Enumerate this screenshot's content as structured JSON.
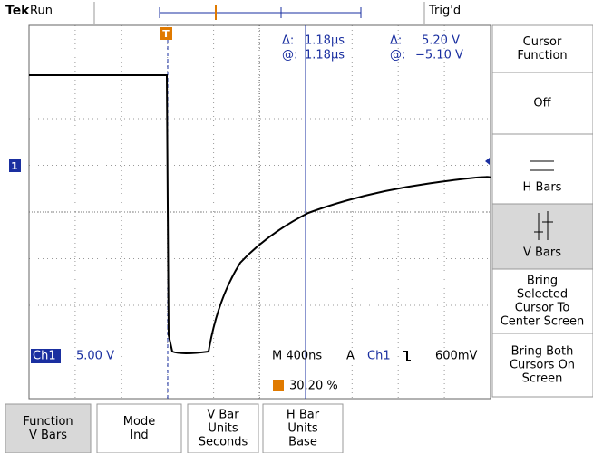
{
  "status_bar": {
    "brand": "Tek",
    "state": "Run",
    "trigger_status": "Trig'd"
  },
  "readout": {
    "time_delta_label": "Δ:",
    "time_delta": "1.18µs",
    "time_at_label": "@:",
    "time_at": "1.18µs",
    "volt_delta_label": "Δ:",
    "volt_delta": "5.20 V",
    "volt_at_label": "@:",
    "volt_at": "−5.10 V"
  },
  "channel": {
    "name": "Ch1",
    "scale": "5.00 V"
  },
  "timebase": {
    "scale": "M 400ns",
    "trigger_mode": "A",
    "trigger_source": "Ch1",
    "trigger_level": "600mV",
    "trigger_position": "30.20 %"
  },
  "markers": {
    "trigger": "T",
    "channel": "1"
  },
  "side_menu": {
    "title": [
      "Cursor",
      "Function"
    ],
    "items": [
      [
        "Off"
      ],
      [
        "H Bars"
      ],
      [
        "V Bars"
      ],
      [
        "Bring",
        "Selected",
        "Cursor To",
        "Center Screen"
      ],
      [
        "Bring Both",
        "Cursors On",
        "Screen"
      ]
    ]
  },
  "bottom_menu": [
    [
      "Function",
      "V Bars"
    ],
    [
      "Mode",
      "Ind"
    ],
    [
      "V Bar",
      "Units",
      "Seconds"
    ],
    [
      "H Bar",
      "Units",
      "Base"
    ]
  ]
}
